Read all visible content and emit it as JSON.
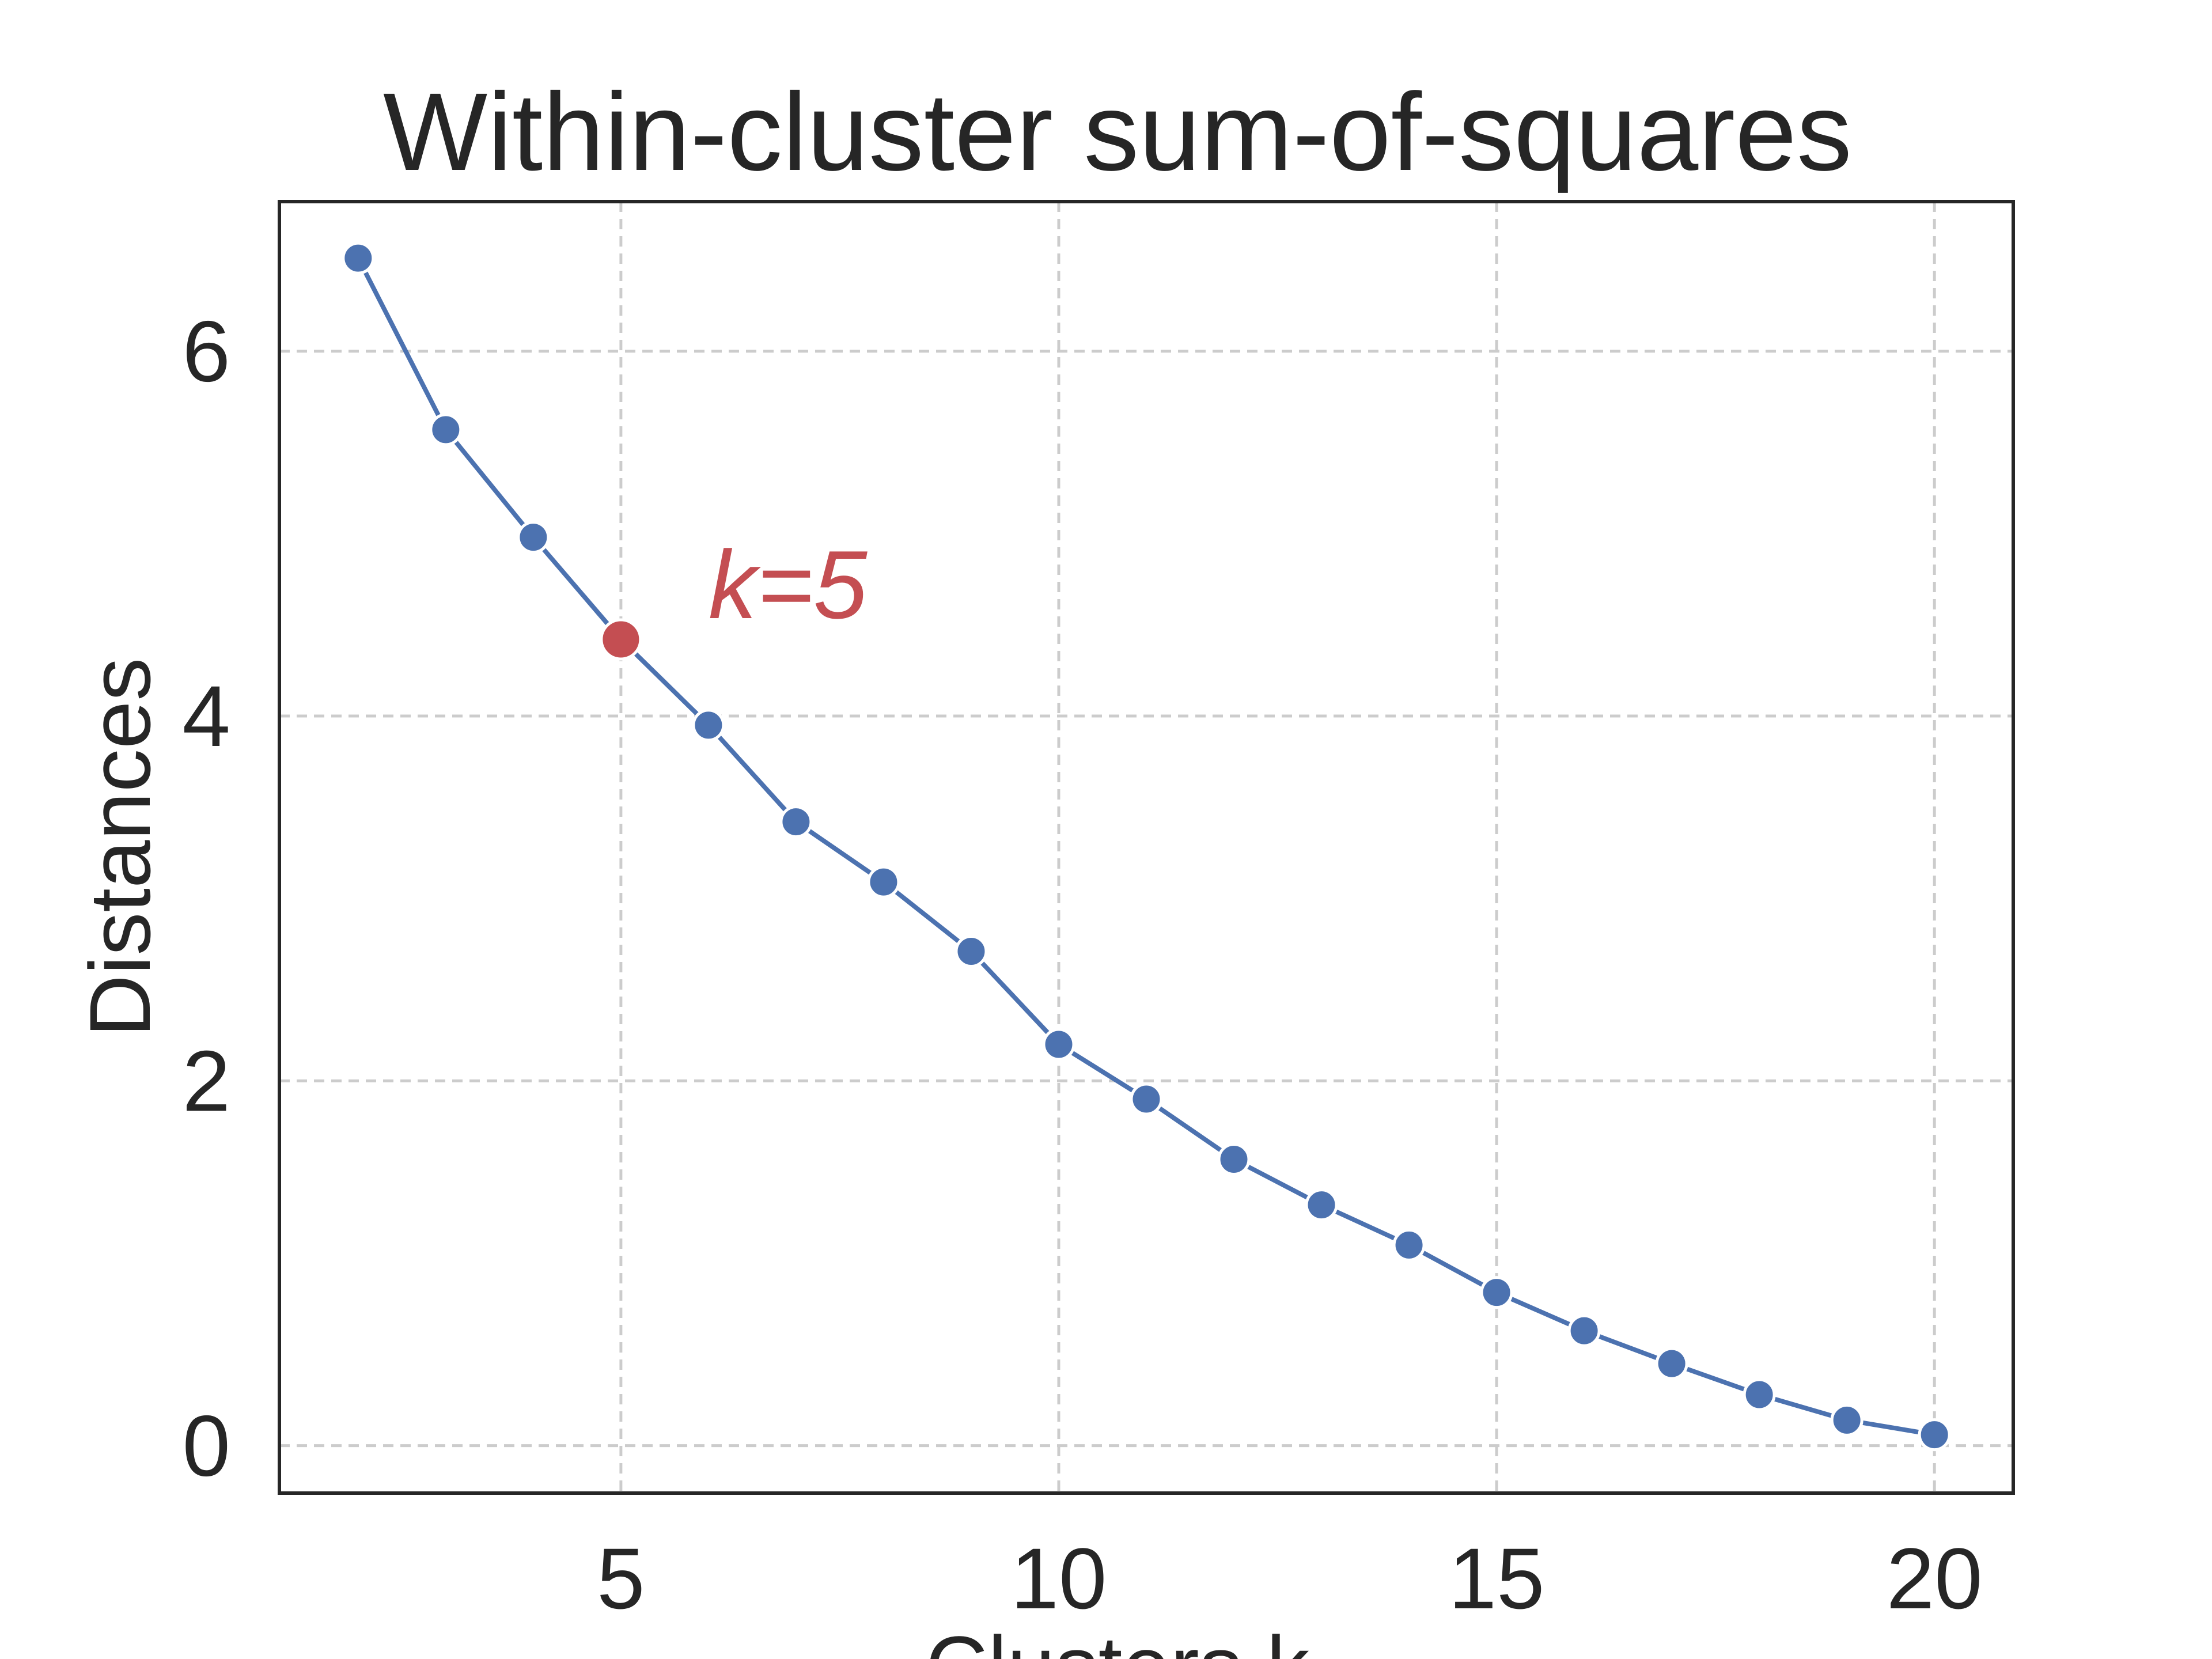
{
  "chart_data": {
    "type": "line",
    "title": "Within-cluster sum-of-squares",
    "xlabel": "Clusters k",
    "ylabel": "Distances",
    "xlim": [
      1.1,
      20.9
    ],
    "ylim": [
      -0.26,
      6.82
    ],
    "xticks": [
      5,
      10,
      15,
      20
    ],
    "yticks": [
      0,
      2,
      4,
      6
    ],
    "grid": true,
    "grid_style": "dashed",
    "series": [
      {
        "color": "#4c72b0",
        "x": [
          2,
          3,
          4,
          5,
          6,
          7,
          8,
          9,
          10,
          11,
          12,
          13,
          14,
          15,
          16,
          17,
          18,
          19,
          20
        ],
        "y": [
          6.51,
          5.57,
          4.98,
          4.42,
          3.95,
          3.42,
          3.09,
          2.71,
          2.2,
          1.9,
          1.57,
          1.32,
          1.1,
          0.84,
          0.63,
          0.45,
          0.28,
          0.14,
          0.06
        ]
      }
    ],
    "highlight": {
      "x": 5,
      "y": 4.42,
      "color": "#c44e52"
    },
    "annotation": {
      "text": "k=5",
      "x": 6,
      "y": 4.6,
      "color": "#c44e52"
    }
  }
}
